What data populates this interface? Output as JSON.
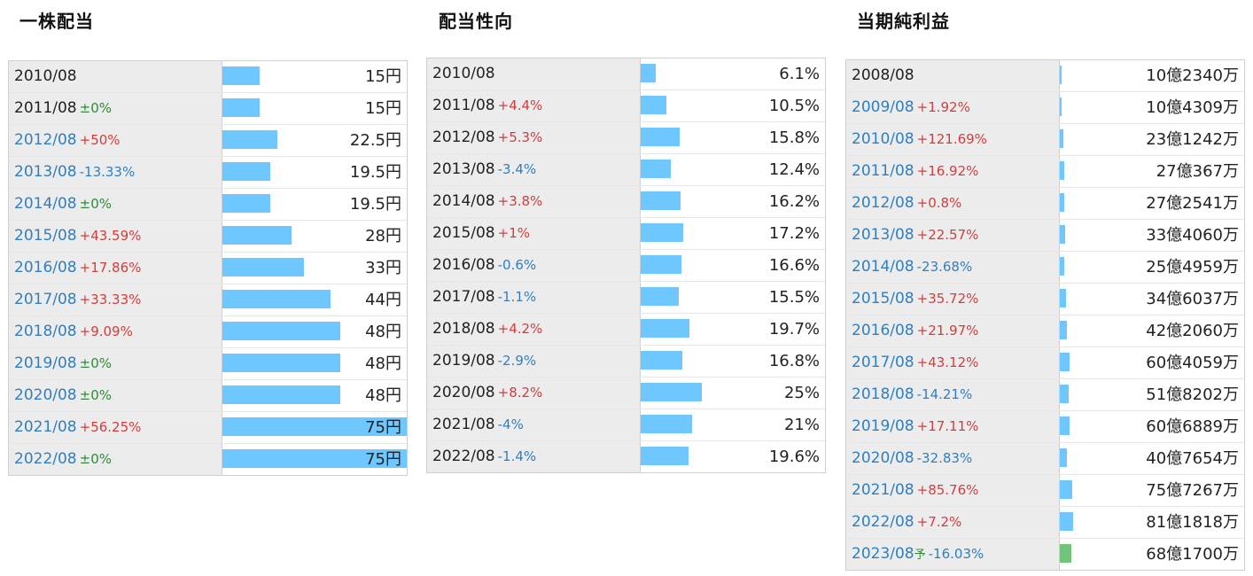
{
  "dividend": {
    "title": "一株配当",
    "max_value": 75,
    "rows": [
      {
        "year": "2010/08",
        "change": "",
        "dir": "",
        "link": false,
        "value": "15円",
        "num": 15
      },
      {
        "year": "2011/08",
        "change": "±0%",
        "dir": "flat",
        "link": false,
        "value": "15円",
        "num": 15
      },
      {
        "year": "2012/08",
        "change": "+50%",
        "dir": "up",
        "link": true,
        "value": "22.5円",
        "num": 22.5
      },
      {
        "year": "2013/08",
        "change": "-13.33%",
        "dir": "down",
        "link": true,
        "value": "19.5円",
        "num": 19.5
      },
      {
        "year": "2014/08",
        "change": "±0%",
        "dir": "flat",
        "link": true,
        "value": "19.5円",
        "num": 19.5
      },
      {
        "year": "2015/08",
        "change": "+43.59%",
        "dir": "up",
        "link": true,
        "value": "28円",
        "num": 28
      },
      {
        "year": "2016/08",
        "change": "+17.86%",
        "dir": "up",
        "link": true,
        "value": "33円",
        "num": 33
      },
      {
        "year": "2017/08",
        "change": "+33.33%",
        "dir": "up",
        "link": true,
        "value": "44円",
        "num": 44
      },
      {
        "year": "2018/08",
        "change": "+9.09%",
        "dir": "up",
        "link": true,
        "value": "48円",
        "num": 48
      },
      {
        "year": "2019/08",
        "change": "±0%",
        "dir": "flat",
        "link": true,
        "value": "48円",
        "num": 48
      },
      {
        "year": "2020/08",
        "change": "±0%",
        "dir": "flat",
        "link": true,
        "value": "48円",
        "num": 48
      },
      {
        "year": "2021/08",
        "change": "+56.25%",
        "dir": "up",
        "link": true,
        "value": "75円",
        "num": 75
      },
      {
        "year": "2022/08",
        "change": "±0%",
        "dir": "flat",
        "link": true,
        "value": "75円",
        "num": 75
      }
    ]
  },
  "payout": {
    "title": "配当性向",
    "max_value": 75,
    "rows": [
      {
        "year": "2010/08",
        "change": "",
        "dir": "",
        "link": false,
        "value": "6.1%",
        "num": 6.1
      },
      {
        "year": "2011/08",
        "change": "+4.4%",
        "dir": "up",
        "link": false,
        "value": "10.5%",
        "num": 10.5
      },
      {
        "year": "2012/08",
        "change": "+5.3%",
        "dir": "up",
        "link": false,
        "value": "15.8%",
        "num": 15.8
      },
      {
        "year": "2013/08",
        "change": "-3.4%",
        "dir": "down",
        "link": false,
        "value": "12.4%",
        "num": 12.4
      },
      {
        "year": "2014/08",
        "change": "+3.8%",
        "dir": "up",
        "link": false,
        "value": "16.2%",
        "num": 16.2
      },
      {
        "year": "2015/08",
        "change": "+1%",
        "dir": "up",
        "link": false,
        "value": "17.2%",
        "num": 17.2
      },
      {
        "year": "2016/08",
        "change": "-0.6%",
        "dir": "down",
        "link": false,
        "value": "16.6%",
        "num": 16.6
      },
      {
        "year": "2017/08",
        "change": "-1.1%",
        "dir": "down",
        "link": false,
        "value": "15.5%",
        "num": 15.5
      },
      {
        "year": "2018/08",
        "change": "+4.2%",
        "dir": "up",
        "link": false,
        "value": "19.7%",
        "num": 19.7
      },
      {
        "year": "2019/08",
        "change": "-2.9%",
        "dir": "down",
        "link": false,
        "value": "16.8%",
        "num": 16.8
      },
      {
        "year": "2020/08",
        "change": "+8.2%",
        "dir": "up",
        "link": false,
        "value": "25%",
        "num": 25
      },
      {
        "year": "2021/08",
        "change": "-4%",
        "dir": "down",
        "link": false,
        "value": "21%",
        "num": 21
      },
      {
        "year": "2022/08",
        "change": "-1.4%",
        "dir": "down",
        "link": false,
        "value": "19.6%",
        "num": 19.6
      }
    ]
  },
  "net_income": {
    "title": "当期純利益",
    "max_value": 1100,
    "rows": [
      {
        "year": "2008/08",
        "change": "",
        "dir": "",
        "link": false,
        "value": "10億2340万",
        "num": 10.234
      },
      {
        "year": "2009/08",
        "change": "+1.92%",
        "dir": "up",
        "link": true,
        "value": "10億4309万",
        "num": 10.4309
      },
      {
        "year": "2010/08",
        "change": "+121.69%",
        "dir": "up",
        "link": true,
        "value": "23億1242万",
        "num": 23.1242
      },
      {
        "year": "2011/08",
        "change": "+16.92%",
        "dir": "up",
        "link": true,
        "value": "27億367万",
        "num": 27.0367
      },
      {
        "year": "2012/08",
        "change": "+0.8%",
        "dir": "up",
        "link": true,
        "value": "27億2541万",
        "num": 27.2541
      },
      {
        "year": "2013/08",
        "change": "+22.57%",
        "dir": "up",
        "link": true,
        "value": "33億4060万",
        "num": 33.406
      },
      {
        "year": "2014/08",
        "change": "-23.68%",
        "dir": "down",
        "link": true,
        "value": "25億4959万",
        "num": 25.4959
      },
      {
        "year": "2015/08",
        "change": "+35.72%",
        "dir": "up",
        "link": true,
        "value": "34億6037万",
        "num": 34.6037
      },
      {
        "year": "2016/08",
        "change": "+21.97%",
        "dir": "up",
        "link": true,
        "value": "42億2060万",
        "num": 42.206
      },
      {
        "year": "2017/08",
        "change": "+43.12%",
        "dir": "up",
        "link": true,
        "value": "60億4059万",
        "num": 60.4059
      },
      {
        "year": "2018/08",
        "change": "-14.21%",
        "dir": "down",
        "link": true,
        "value": "51億8202万",
        "num": 51.8202
      },
      {
        "year": "2019/08",
        "change": "+17.11%",
        "dir": "up",
        "link": true,
        "value": "60億6889万",
        "num": 60.6889
      },
      {
        "year": "2020/08",
        "change": "-32.83%",
        "dir": "down",
        "link": true,
        "value": "40億7654万",
        "num": 40.7654
      },
      {
        "year": "2021/08",
        "change": "+85.76%",
        "dir": "up",
        "link": true,
        "value": "75億7267万",
        "num": 75.7267
      },
      {
        "year": "2022/08",
        "change": "+7.2%",
        "dir": "up",
        "link": true,
        "value": "81億1818万",
        "num": 81.1818
      },
      {
        "year": "2023/08",
        "forecast": "予",
        "change": "-16.03%",
        "dir": "down",
        "link": true,
        "value": "68億1700万",
        "num": 68.17,
        "bar_color": "green"
      }
    ]
  },
  "colors": {
    "bar": "#6ec8ff",
    "bar_forecast": "#72c47a",
    "up": "#d43c3c",
    "down": "#2f7fc1",
    "flat": "#2e8b3a",
    "label_bg": "#ececec"
  },
  "chart_data": [
    {
      "type": "bar",
      "title": "一株配当",
      "categories": [
        "2010/08",
        "2011/08",
        "2012/08",
        "2013/08",
        "2014/08",
        "2015/08",
        "2016/08",
        "2017/08",
        "2018/08",
        "2019/08",
        "2020/08",
        "2021/08",
        "2022/08"
      ],
      "values": [
        15,
        15,
        22.5,
        19.5,
        19.5,
        28,
        33,
        44,
        48,
        48,
        48,
        75,
        75
      ],
      "ylabel": "円"
    },
    {
      "type": "bar",
      "title": "配当性向",
      "categories": [
        "2010/08",
        "2011/08",
        "2012/08",
        "2013/08",
        "2014/08",
        "2015/08",
        "2016/08",
        "2017/08",
        "2018/08",
        "2019/08",
        "2020/08",
        "2021/08",
        "2022/08"
      ],
      "values": [
        6.1,
        10.5,
        15.8,
        12.4,
        16.2,
        17.2,
        16.6,
        15.5,
        19.7,
        16.8,
        25,
        21,
        19.6
      ],
      "ylabel": "%"
    },
    {
      "type": "bar",
      "title": "当期純利益",
      "categories": [
        "2008/08",
        "2009/08",
        "2010/08",
        "2011/08",
        "2012/08",
        "2013/08",
        "2014/08",
        "2015/08",
        "2016/08",
        "2017/08",
        "2018/08",
        "2019/08",
        "2020/08",
        "2021/08",
        "2022/08",
        "2023/08"
      ],
      "values": [
        10.234,
        10.4309,
        23.1242,
        27.0367,
        27.2541,
        33.406,
        25.4959,
        34.6037,
        42.206,
        60.4059,
        51.8202,
        60.6889,
        40.7654,
        75.7267,
        81.1818,
        68.17
      ],
      "ylabel": "億"
    }
  ]
}
